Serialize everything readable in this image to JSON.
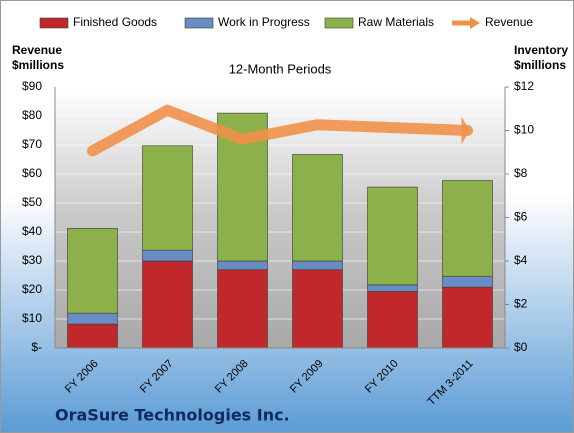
{
  "chart_data": {
    "type": "bar_line",
    "title": "12-Month Periods",
    "footer": "OraSure Technologies Inc.",
    "y_label": [
      "Revenue",
      "$millions"
    ],
    "y2_label": [
      "Inventory",
      "$millions"
    ],
    "categories": [
      "FY 2006",
      "FY 2007",
      "FY 2008",
      "FY 2009",
      "FY 2010",
      "TTM 3-2011"
    ],
    "series": [
      {
        "name": "Finished Goods",
        "color": "#c0282c",
        "axis": "y2",
        "stacked": true,
        "values": [
          1.1,
          4.0,
          3.6,
          3.6,
          2.6,
          2.8
        ]
      },
      {
        "name": "Work in Progress",
        "color": "#6a8cc4",
        "axis": "y2",
        "stacked": true,
        "values": [
          0.5,
          0.5,
          0.4,
          0.4,
          0.3,
          0.5
        ]
      },
      {
        "name": "Raw Materials",
        "color": "#8cb04a",
        "axis": "y2",
        "stacked": true,
        "values": [
          3.9,
          4.8,
          6.8,
          4.9,
          4.5,
          4.4
        ]
      },
      {
        "name": "Revenue",
        "color": "#f0914a",
        "axis": "y",
        "line": true,
        "values": [
          68,
          82,
          72,
          77,
          76,
          75
        ]
      }
    ],
    "ylim": [
      0,
      90
    ],
    "yticks": [
      {
        "value": 0,
        "label": "$-"
      },
      {
        "value": 10,
        "label": "$10"
      },
      {
        "value": 20,
        "label": "$20"
      },
      {
        "value": 30,
        "label": "$30"
      },
      {
        "value": 40,
        "label": "$40"
      },
      {
        "value": 50,
        "label": "$50"
      },
      {
        "value": 60,
        "label": "$60"
      },
      {
        "value": 70,
        "label": "$70"
      },
      {
        "value": 80,
        "label": "$80"
      },
      {
        "value": 90,
        "label": "$90"
      }
    ],
    "y2lim": [
      0,
      12
    ],
    "y2ticks": [
      {
        "value": 0,
        "label": "$0"
      },
      {
        "value": 2,
        "label": "$2"
      },
      {
        "value": 4,
        "label": "$4"
      },
      {
        "value": 6,
        "label": "$6"
      },
      {
        "value": 8,
        "label": "$8"
      },
      {
        "value": 10,
        "label": "$10"
      },
      {
        "value": 12,
        "label": "$12"
      }
    ],
    "grid": true
  }
}
